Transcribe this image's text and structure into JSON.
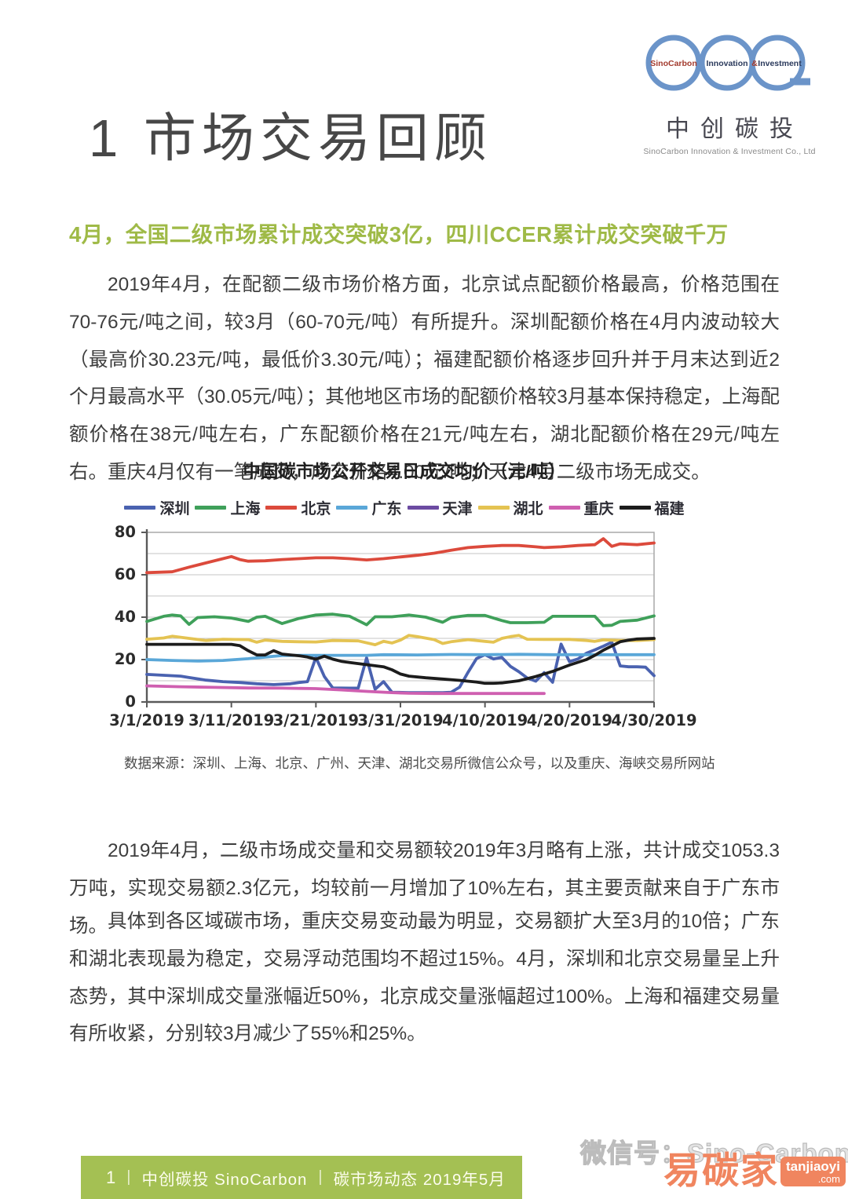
{
  "page": {
    "section_title": "1 市场交易回顾",
    "logo": {
      "circle_word_1": "SinoCarbon",
      "circle_word_2": "Innovation",
      "circle_amp": "&",
      "circle_word_3": "Investment",
      "name_cn": "中创碳投",
      "name_en": "SinoCarbon Innovation & Investment Co.,  Ltd"
    },
    "subtitle": "4月，全国二级市场累计成交突破3亿，四川CCER累计成交突破千万",
    "paragraphs": [
      "2019年4月，在配额二级市场价格方面，北京试点配额价格最高，价格范围在70-76元/吨之间，较3月（60-70元/吨）有所提升。深圳配额价格在4月内波动较大（最高价30.23元/吨，最低价3.30元/吨）；福建配额价格逐步回升并于月末达到近2个月最高水平（30.05元/吨）；其他地区市场的配额价格较3月基本保持稳定，上海配额价格在38元/吨左右，广东配额价格在21元/吨左右，湖北配额价格在29元/吨左右。重庆4月仅有一笔成交，成交价格4.00元/吨；天津4月二级市场无成交。",
      "2019年4月，二级市场成交量和交易额较2019年3月略有上涨，共计成交1053.3万吨，实现交易额2.3亿元，均较前一月增加了10%左右，其主要贡献来自于广东市场。",
      "具体到各区域碳市场，重庆交易变动最为明显，交易额扩大至3月的10倍；广东和湖北表现最为稳定，交易浮动范围均不超过15%。4月，深圳和北京交易量呈上升态势，其中深圳成交量涨幅近50%，北京成交量涨幅超过100%。上海和福建交易量有所收紧，分别较3月减少了55%和25%。"
    ],
    "chart_source": "数据来源：深圳、上海、北京、广州、天津、湖北交易所微信公众号，以及重庆、海峡交易所网站",
    "footer": {
      "page_number": "1",
      "separator": "|",
      "brand": "中创碳投 SinoCarbon",
      "doc_title": "碳市场动态 2019年5月",
      "bar_color": "#a4c053"
    },
    "watermark": {
      "wechat_text": "微信号：Sino-Carbon",
      "brand": "易碳家",
      "site_line1": "tanjiaoyi",
      "site_line2": ".com",
      "orange": "#f0855f"
    },
    "colors": {
      "subtitle_green": "#9fba47",
      "footer_green": "#a4c053",
      "body_text": "#3e3e3e"
    }
  },
  "chart_data": {
    "type": "line",
    "title": "中国碳市场公开交易日成交均价（元/吨）",
    "legend_position": "top",
    "grid": "horizontal, every 10",
    "x_axis": {
      "unit": "days since 3/1/2019",
      "range_days": [
        0,
        60
      ],
      "tick_days": [
        0,
        10,
        20,
        30,
        40,
        50,
        60
      ],
      "tick_labels": [
        "3/1/2019",
        "3/11/2019",
        "3/21/2019",
        "3/31/2019",
        "4/10/2019",
        "4/20/2019",
        "4/30/2019"
      ]
    },
    "y_axis": {
      "ylim": [
        0,
        80
      ],
      "ticks": [
        0,
        20,
        40,
        60,
        80
      ]
    },
    "series": [
      {
        "name": "深圳",
        "color": "#4a62b0",
        "points": [
          [
            0,
            13
          ],
          [
            2,
            12.6
          ],
          [
            4,
            12.2
          ],
          [
            5,
            11.5
          ],
          [
            7,
            10.3
          ],
          [
            9,
            9.6
          ],
          [
            11,
            9.2
          ],
          [
            13,
            8.6
          ],
          [
            15,
            8.2
          ],
          [
            17,
            8.6
          ],
          [
            18,
            9.2
          ],
          [
            19,
            9.6
          ],
          [
            20,
            21
          ],
          [
            21,
            12
          ],
          [
            22,
            6.6
          ],
          [
            24,
            6.5
          ],
          [
            25,
            6.5
          ],
          [
            26,
            20.8
          ],
          [
            27,
            6
          ],
          [
            28,
            9.6
          ],
          [
            29,
            4.6
          ],
          [
            31,
            4.4
          ],
          [
            33,
            4.4
          ],
          [
            35,
            4.4
          ],
          [
            36,
            4.6
          ],
          [
            37,
            7
          ],
          [
            38,
            14
          ],
          [
            39,
            20.5
          ],
          [
            40,
            22.3
          ],
          [
            41,
            20.3
          ],
          [
            42,
            21
          ],
          [
            43,
            16.8
          ],
          [
            44,
            14.3
          ],
          [
            45,
            11.3
          ],
          [
            46,
            9.8
          ],
          [
            47,
            13.8
          ],
          [
            48,
            9.3
          ],
          [
            49,
            27.3
          ],
          [
            50,
            19
          ],
          [
            51,
            20.3
          ],
          [
            52,
            23
          ],
          [
            53,
            24.6
          ],
          [
            54,
            26.3
          ],
          [
            55,
            28.2
          ],
          [
            56,
            17
          ],
          [
            57,
            16.6
          ],
          [
            58,
            16.6
          ],
          [
            59,
            16.4
          ],
          [
            60,
            12.4
          ]
        ]
      },
      {
        "name": "上海",
        "color": "#3fa05a",
        "points": [
          [
            0,
            38
          ],
          [
            2,
            40.4
          ],
          [
            3,
            41
          ],
          [
            4,
            40.6
          ],
          [
            5,
            36.6
          ],
          [
            6,
            39.8
          ],
          [
            8,
            40.2
          ],
          [
            10,
            39.6
          ],
          [
            12,
            38
          ],
          [
            13,
            40
          ],
          [
            14,
            40.4
          ],
          [
            16,
            37
          ],
          [
            18,
            39.4
          ],
          [
            20,
            41
          ],
          [
            22,
            41.4
          ],
          [
            24,
            40.4
          ],
          [
            25,
            38.4
          ],
          [
            26,
            36.4
          ],
          [
            27,
            40.2
          ],
          [
            29,
            40.2
          ],
          [
            31,
            41
          ],
          [
            33,
            40
          ],
          [
            35,
            37.6
          ],
          [
            36,
            39.8
          ],
          [
            38,
            40.8
          ],
          [
            40,
            40.8
          ],
          [
            42,
            38.4
          ],
          [
            43,
            37.4
          ],
          [
            45,
            37.4
          ],
          [
            47,
            37.6
          ],
          [
            48,
            40.4
          ],
          [
            50,
            40.4
          ],
          [
            52,
            40.4
          ],
          [
            53,
            40.4
          ],
          [
            54,
            36
          ],
          [
            55,
            36.2
          ],
          [
            56,
            38
          ],
          [
            58,
            38.6
          ],
          [
            60,
            40.6
          ]
        ]
      },
      {
        "name": "北京",
        "color": "#dc4a3c",
        "points": [
          [
            0,
            61
          ],
          [
            3,
            61.4
          ],
          [
            5,
            63.6
          ],
          [
            7,
            65.6
          ],
          [
            9,
            67.6
          ],
          [
            10,
            68.6
          ],
          [
            11,
            67.2
          ],
          [
            12,
            66.4
          ],
          [
            14,
            66.6
          ],
          [
            16,
            67.2
          ],
          [
            18,
            67.6
          ],
          [
            20,
            68
          ],
          [
            22,
            68
          ],
          [
            24,
            67.6
          ],
          [
            26,
            67
          ],
          [
            28,
            67.6
          ],
          [
            30,
            68.4
          ],
          [
            32,
            69.2
          ],
          [
            34,
            70.2
          ],
          [
            36,
            71.6
          ],
          [
            38,
            72.8
          ],
          [
            40,
            73.4
          ],
          [
            42,
            73.8
          ],
          [
            44,
            73.8
          ],
          [
            46,
            73.2
          ],
          [
            47,
            72.8
          ],
          [
            49,
            73.2
          ],
          [
            51,
            73.8
          ],
          [
            53,
            74.2
          ],
          [
            54,
            77
          ],
          [
            55,
            73.4
          ],
          [
            56,
            74.6
          ],
          [
            58,
            74.2
          ],
          [
            60,
            75
          ]
        ]
      },
      {
        "name": "广东",
        "color": "#5aa7d8",
        "points": [
          [
            0,
            20
          ],
          [
            3,
            19.6
          ],
          [
            6,
            19.3
          ],
          [
            9,
            19.6
          ],
          [
            12,
            20.4
          ],
          [
            14,
            21.2
          ],
          [
            16,
            21.9
          ],
          [
            18,
            22
          ],
          [
            22,
            22
          ],
          [
            26,
            22
          ],
          [
            28,
            22.3
          ],
          [
            32,
            22.2
          ],
          [
            36,
            22.4
          ],
          [
            40,
            22.3
          ],
          [
            44,
            22.5
          ],
          [
            48,
            22.3
          ],
          [
            52,
            22.3
          ],
          [
            56,
            22.3
          ],
          [
            60,
            22.3
          ]
        ]
      },
      {
        "name": "天津",
        "color": "#6c4ba2",
        "points": []
      },
      {
        "name": "湖北",
        "color": "#e4c352",
        "points": [
          [
            0,
            29.6
          ],
          [
            2,
            30.2
          ],
          [
            3,
            31
          ],
          [
            5,
            30
          ],
          [
            7,
            29
          ],
          [
            9,
            29.6
          ],
          [
            12,
            29.4
          ],
          [
            13,
            28.2
          ],
          [
            14,
            29.2
          ],
          [
            16,
            28.6
          ],
          [
            18,
            28.4
          ],
          [
            20,
            28.3
          ],
          [
            22,
            29
          ],
          [
            25,
            28.8
          ],
          [
            27,
            27
          ],
          [
            28,
            28.6
          ],
          [
            29,
            27.8
          ],
          [
            30,
            29.2
          ],
          [
            31,
            31.4
          ],
          [
            32,
            30.8
          ],
          [
            34,
            29.4
          ],
          [
            35,
            27.6
          ],
          [
            36,
            28.4
          ],
          [
            38,
            29.4
          ],
          [
            40,
            28.6
          ],
          [
            41,
            28.2
          ],
          [
            42,
            30
          ],
          [
            43,
            30.8
          ],
          [
            44,
            31.4
          ],
          [
            45,
            29.6
          ],
          [
            47,
            29.5
          ],
          [
            50,
            29.5
          ],
          [
            52,
            29
          ],
          [
            53,
            28.6
          ],
          [
            54,
            29.3
          ],
          [
            56,
            29
          ],
          [
            58,
            29
          ],
          [
            60,
            29.4
          ]
        ]
      },
      {
        "name": "重庆",
        "color": "#cf5fb0",
        "points": [
          [
            0,
            7.6
          ],
          [
            4,
            7.2
          ],
          [
            8,
            6.9
          ],
          [
            12,
            6.6
          ],
          [
            16,
            6.5
          ],
          [
            20,
            6.3
          ],
          [
            23,
            5.7
          ],
          [
            26,
            5
          ],
          [
            29,
            4.4
          ],
          [
            31,
            4.1
          ],
          [
            34,
            4
          ],
          [
            38,
            4
          ],
          [
            42,
            4
          ],
          [
            45,
            4
          ],
          [
            47,
            4
          ]
        ]
      },
      {
        "name": "福建",
        "color": "#1c1c1c",
        "points": [
          [
            0,
            27.2
          ],
          [
            4,
            27.2
          ],
          [
            8,
            27.2
          ],
          [
            10,
            27.2
          ],
          [
            11,
            26.6
          ],
          [
            12,
            24.2
          ],
          [
            13,
            22.2
          ],
          [
            14,
            22.2
          ],
          [
            15,
            24.2
          ],
          [
            16,
            22.6
          ],
          [
            17,
            22.2
          ],
          [
            18,
            21.8
          ],
          [
            19,
            21.2
          ],
          [
            20,
            20.2
          ],
          [
            21,
            21.6
          ],
          [
            22,
            20.2
          ],
          [
            23,
            19.2
          ],
          [
            24,
            18.6
          ],
          [
            26,
            17.6
          ],
          [
            28,
            16.6
          ],
          [
            29,
            15.2
          ],
          [
            30,
            13.2
          ],
          [
            31,
            12.2
          ],
          [
            33,
            11.4
          ],
          [
            35,
            10.8
          ],
          [
            37,
            10.2
          ],
          [
            39,
            9.4
          ],
          [
            40,
            8.8
          ],
          [
            41,
            8.8
          ],
          [
            42,
            9
          ],
          [
            44,
            10
          ],
          [
            46,
            12
          ],
          [
            48,
            14.4
          ],
          [
            50,
            17.4
          ],
          [
            52,
            20
          ],
          [
            53,
            22
          ],
          [
            54,
            24.4
          ],
          [
            55,
            26.4
          ],
          [
            56,
            28.4
          ],
          [
            57,
            29.2
          ],
          [
            58,
            29.7
          ],
          [
            60,
            30
          ]
        ]
      }
    ]
  }
}
